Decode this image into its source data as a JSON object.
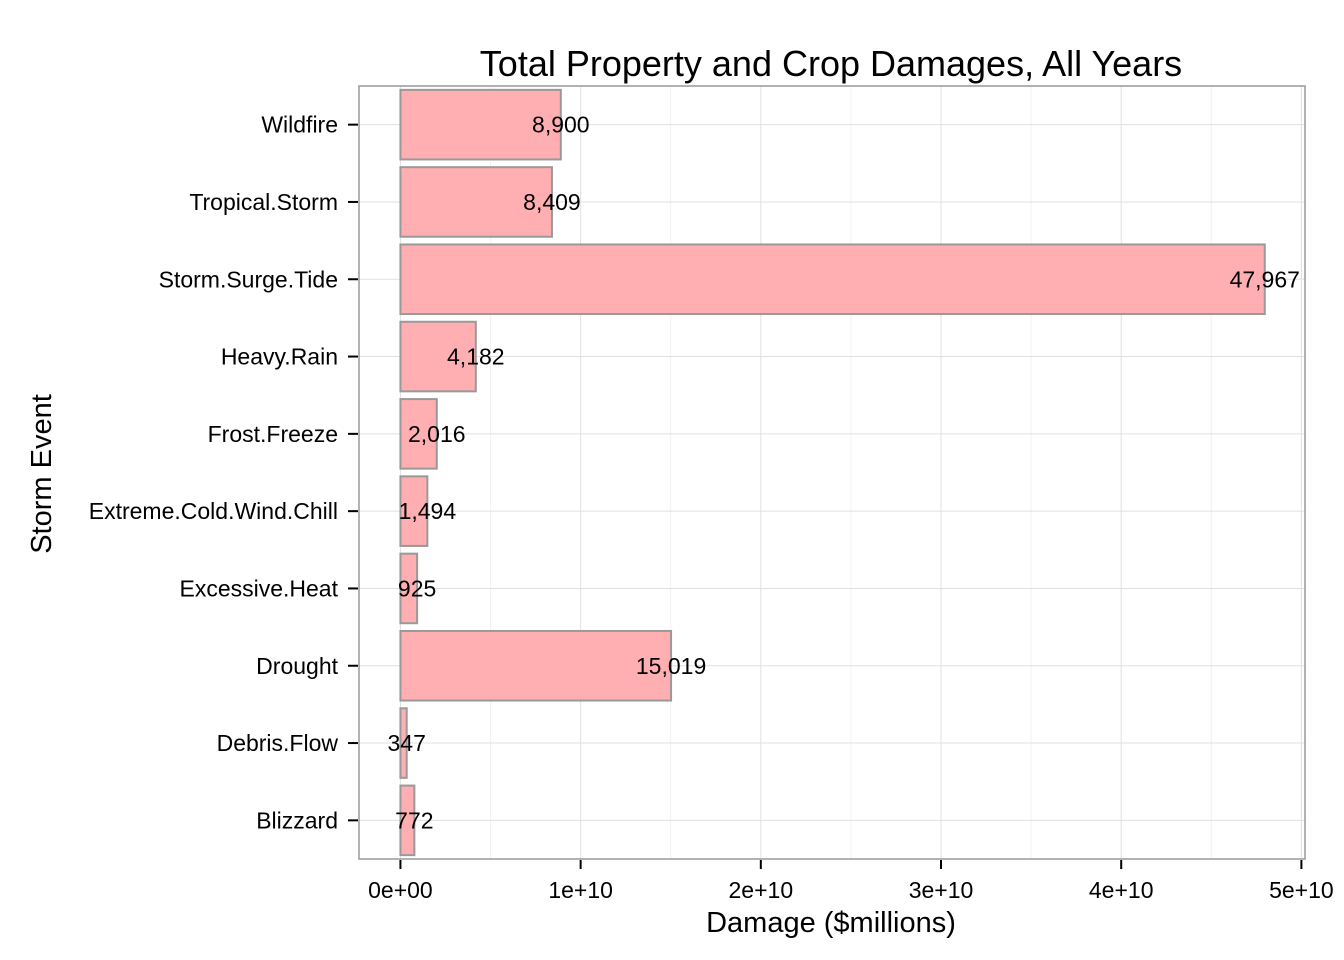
{
  "chart_data": {
    "type": "bar",
    "orientation": "horizontal",
    "title": "Total Property and Crop Damages, All Years",
    "xlabel": "Damage ($millions)",
    "ylabel": "Storm Event",
    "categories": [
      "Wildfire",
      "Tropical.Storm",
      "Storm.Surge.Tide",
      "Heavy.Rain",
      "Frost.Freeze",
      "Extreme.Cold.Wind.Chill",
      "Excessive.Heat",
      "Drought",
      "Debris.Flow",
      "Blizzard"
    ],
    "values": [
      8900000000,
      8409000000,
      47967000000,
      4182000000,
      2016000000,
      1494000000,
      925000000,
      15019000000,
      347000000,
      772000000
    ],
    "data_labels": [
      "8,900",
      "8,409",
      "47,967",
      "4,182",
      "2,016",
      "1,494",
      "925",
      "15,019",
      "347",
      "772"
    ],
    "xlim": [
      -2300000000,
      50200000000
    ],
    "xticks": [
      0,
      10000000000,
      20000000000,
      30000000000,
      40000000000,
      50000000000
    ],
    "xtick_labels": [
      "0e+00",
      "1e+10",
      "2e+10",
      "3e+10",
      "4e+10",
      "5e+10"
    ],
    "grid": true,
    "colors": {
      "bar_fill": "#ffaeb1",
      "bar_stroke": "#999999",
      "grid_major": "#e0e0e0",
      "grid_minor": "#f2f2f2",
      "panel_border": "#999999"
    }
  }
}
